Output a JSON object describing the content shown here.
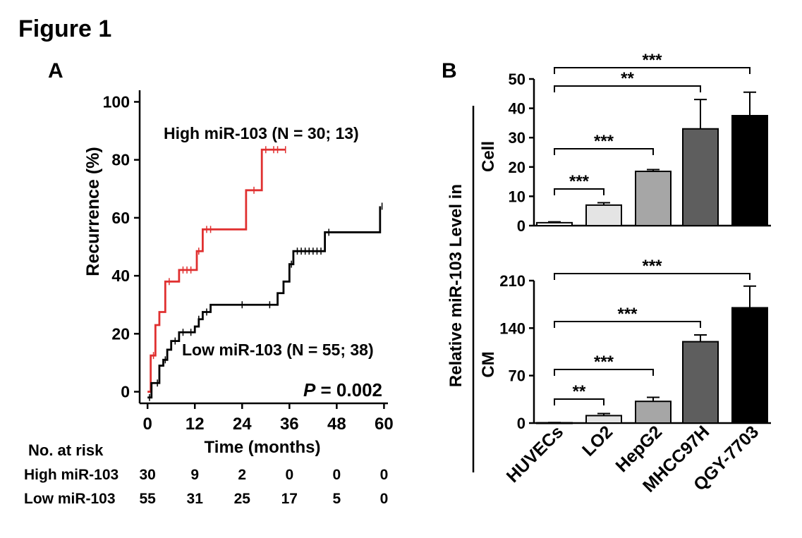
{
  "figure_title": "Figure 1",
  "chart_data": [
    {
      "type": "line",
      "subtype": "kaplan-meier step curve",
      "panel_label": "A",
      "xlabel": "Time (months)",
      "ylabel": "Recurrence (%)",
      "xlim": [
        -2,
        61
      ],
      "ylim": [
        -4,
        104
      ],
      "xticks": [
        0,
        12,
        24,
        36,
        48,
        60
      ],
      "yticks": [
        0,
        20,
        40,
        60,
        80,
        100
      ],
      "grid": false,
      "annotation": {
        "italic": "P",
        "rest": " = 0.002"
      },
      "colors": {
        "high": "#e03030",
        "low": "#000000"
      },
      "series": [
        {
          "name": "High miR-103 (N = 30; 13)",
          "steps": [
            [
              0,
              0
            ],
            [
              0.8,
              12.5
            ],
            [
              2,
              23
            ],
            [
              3,
              27.5
            ],
            [
              4.5,
              38
            ],
            [
              8,
              42
            ],
            [
              12.5,
              48.5
            ],
            [
              14,
              56
            ],
            [
              20,
              56
            ],
            [
              25,
              69.5
            ],
            [
              29,
              83.5
            ],
            [
              35,
              83.5
            ]
          ],
          "censor_x": [
            1.5,
            5.5,
            9,
            10,
            11,
            13,
            15,
            16,
            27,
            30,
            32,
            33,
            35
          ]
        },
        {
          "name": "Low miR-103 (N = 55; 38)",
          "steps": [
            [
              0,
              -2
            ],
            [
              1,
              3
            ],
            [
              3,
              9
            ],
            [
              4,
              11
            ],
            [
              5,
              14.5
            ],
            [
              6,
              17.5
            ],
            [
              8,
              20.5
            ],
            [
              12,
              22.5
            ],
            [
              13,
              25
            ],
            [
              14,
              27.5
            ],
            [
              16,
              30
            ],
            [
              33,
              34
            ],
            [
              34.5,
              38
            ],
            [
              36,
              44
            ],
            [
              37,
              48.5
            ],
            [
              45,
              55
            ],
            [
              59,
              64
            ]
          ],
          "censor_x": [
            0.5,
            2.5,
            4.5,
            7,
            9,
            11,
            13,
            15,
            24,
            31,
            36.5,
            38,
            39,
            40,
            41,
            42,
            43,
            44,
            46,
            59.5
          ]
        }
      ]
    },
    {
      "type": "table",
      "title": "No. at risk",
      "columns": [
        0,
        12,
        24,
        36,
        48,
        60
      ],
      "rows": [
        {
          "label": "High miR-103",
          "values": [
            30,
            9,
            2,
            0,
            0,
            0
          ]
        },
        {
          "label": "Low miR-103",
          "values": [
            55,
            31,
            25,
            17,
            5,
            0
          ]
        }
      ]
    },
    {
      "type": "bar",
      "panel_label": "B",
      "shared_ylabel": "Relative miR-103 Level in",
      "categories": [
        "HUVECs",
        "LO2",
        "HepG2",
        "MHCC97H",
        "QGY-7703"
      ],
      "bar_colors": [
        "#ffffff",
        "#e4e4e4",
        "#a6a6a6",
        "#5e5e5e",
        "#000000"
      ],
      "subplots": [
        {
          "ylabel": "Cell",
          "ylim": [
            0,
            50
          ],
          "yticks": [
            0,
            10,
            20,
            30,
            40,
            50
          ],
          "values": [
            1,
            7,
            18.5,
            33,
            37.5
          ],
          "errors": [
            0.3,
            0.8,
            0.6,
            10,
            8
          ],
          "significance": [
            {
              "from": 0,
              "to": 1,
              "label": "***"
            },
            {
              "from": 0,
              "to": 2,
              "label": "***"
            },
            {
              "from": 0,
              "to": 3,
              "label": "**"
            },
            {
              "from": 0,
              "to": 4,
              "label": "***"
            }
          ]
        },
        {
          "ylabel": "CM",
          "ylim": [
            0,
            210
          ],
          "yticks": [
            0,
            70,
            140,
            210
          ],
          "values": [
            0.5,
            11,
            32,
            120,
            170
          ],
          "errors": [
            0.3,
            3,
            6,
            10,
            32
          ],
          "significance": [
            {
              "from": 0,
              "to": 1,
              "label": "**"
            },
            {
              "from": 0,
              "to": 2,
              "label": "***"
            },
            {
              "from": 0,
              "to": 3,
              "label": "***"
            },
            {
              "from": 0,
              "to": 4,
              "label": "***"
            }
          ]
        }
      ]
    }
  ]
}
